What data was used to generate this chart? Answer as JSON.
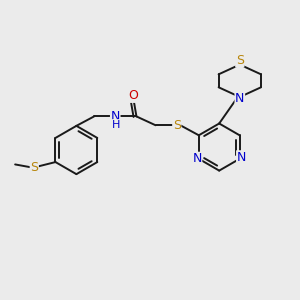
{
  "bg_color": "#ebebeb",
  "bond_color": "#1a1a1a",
  "bond_width": 1.4,
  "atom_colors": {
    "S": "#b8860b",
    "N": "#0000cc",
    "O": "#cc0000",
    "C": "#1a1a1a"
  },
  "fig_size": [
    3.0,
    3.0
  ],
  "dpi": 100,
  "xlim": [
    0,
    10
  ],
  "ylim": [
    0,
    10
  ]
}
